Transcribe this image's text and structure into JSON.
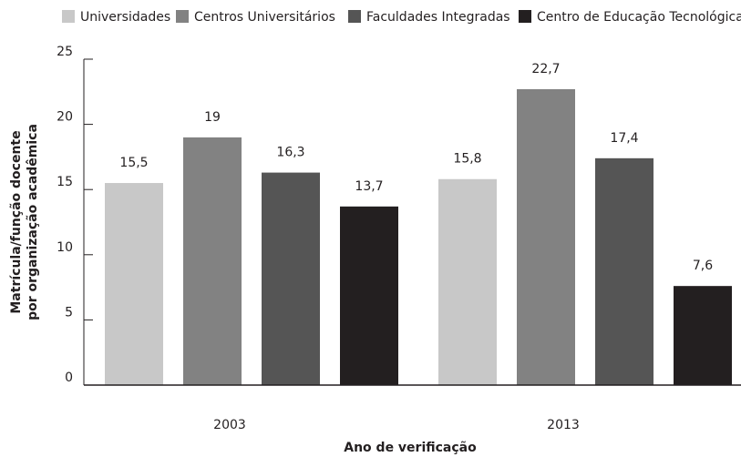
{
  "chart_data": {
    "type": "bar",
    "categories": [
      "2003",
      "2013"
    ],
    "series": [
      {
        "name": "Universidades",
        "color": "#c8c8c8",
        "values": [
          15.5,
          15.8
        ],
        "value_labels": [
          "15,5",
          "15,8"
        ]
      },
      {
        "name": "Centros Universitários",
        "color": "#828282",
        "values": [
          19,
          22.7
        ],
        "value_labels": [
          "19",
          "22,7"
        ]
      },
      {
        "name": "Faculdades Integradas",
        "color": "#555555",
        "values": [
          16.3,
          17.4
        ],
        "value_labels": [
          "16,3",
          "17,4"
        ]
      },
      {
        "name": "Centro de Educação Tecnológica",
        "color": "#231f20",
        "values": [
          13.7,
          7.6
        ],
        "value_labels": [
          "13,7",
          "7,6"
        ]
      }
    ],
    "y_label": [
      "Matrícula/função docente",
      "por organização acadêmica"
    ],
    "x_label": "Ano de verificação",
    "ylim": [
      0,
      25
    ],
    "yticks": [
      0,
      5,
      10,
      15,
      20,
      25
    ],
    "legend": "top"
  }
}
